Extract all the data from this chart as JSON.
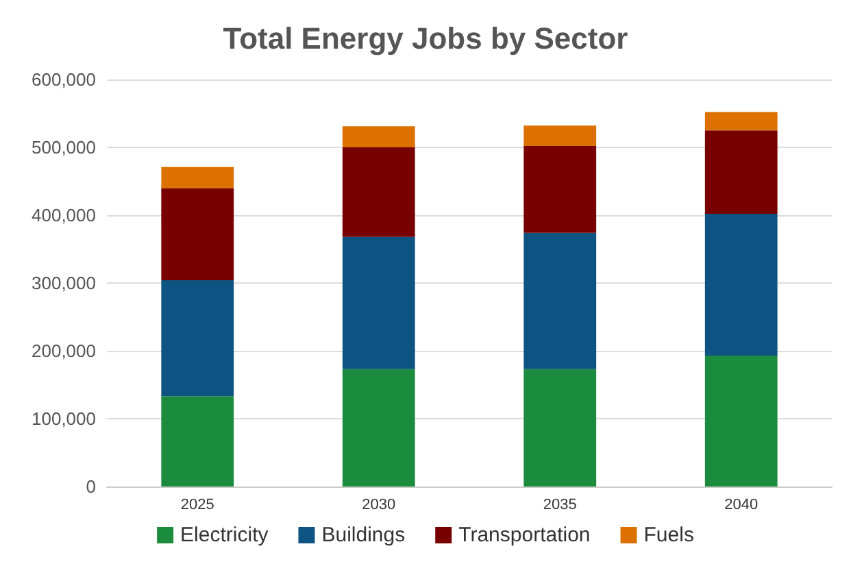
{
  "chart_data": {
    "type": "bar",
    "title": "Total Energy Jobs by Sector",
    "stacked": true,
    "categories": [
      "2025",
      "2030",
      "2035",
      "2040"
    ],
    "series": [
      {
        "name": "Electricity",
        "color": "#1b8c3e",
        "values": [
          133000,
          173000,
          173000,
          193000
        ]
      },
      {
        "name": "Buildings",
        "color": "#0e5482",
        "values": [
          171000,
          195000,
          201000,
          209000
        ]
      },
      {
        "name": "Transportation",
        "color": "#780000",
        "values": [
          136000,
          132000,
          128000,
          123000
        ]
      },
      {
        "name": "Fuels",
        "color": "#dd7100",
        "values": [
          31000,
          31000,
          30000,
          27000
        ]
      }
    ],
    "ylim": [
      0,
      600000
    ],
    "yticks": [
      0,
      {
        "value": 100000,
        "label": "100,000"
      },
      {
        "value": 200000,
        "label": "200,000"
      },
      {
        "value": 300000,
        "label": "300,000"
      },
      {
        "value": 400000,
        "label": "400,000"
      },
      {
        "value": 500000,
        "label": "500,000"
      },
      {
        "value": 600000,
        "label": "600,000"
      }
    ],
    "grid": "y",
    "legend": "bottom"
  }
}
